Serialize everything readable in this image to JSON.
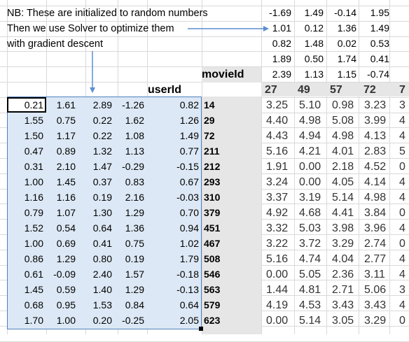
{
  "notes": {
    "line1": "NB: These are initialized to random numbers",
    "line2": "Then we use Solver to optimize them",
    "line3": "with gradient descent"
  },
  "labels": {
    "userId": "userId",
    "movieId": "movieId"
  },
  "movie_factors": [
    [
      "-1.69",
      "1.49",
      "-0.14",
      "1.95"
    ],
    [
      "1.01",
      "0.12",
      "1.36",
      "1.49"
    ],
    [
      "0.82",
      "1.48",
      "0.02",
      "0.53"
    ],
    [
      "1.89",
      "0.50",
      "1.74",
      "0.41"
    ],
    [
      "2.39",
      "1.13",
      "1.15",
      "-0.74"
    ]
  ],
  "movie_ids": [
    "27",
    "49",
    "57",
    "72",
    "7"
  ],
  "user_factors": [
    [
      "0.21",
      "1.61",
      "2.89",
      "-1.26",
      "0.82"
    ],
    [
      "1.55",
      "0.75",
      "0.22",
      "1.62",
      "1.26"
    ],
    [
      "1.50",
      "1.17",
      "0.22",
      "1.08",
      "1.49"
    ],
    [
      "0.47",
      "0.89",
      "1.32",
      "1.13",
      "0.77"
    ],
    [
      "0.31",
      "2.10",
      "1.47",
      "-0.29",
      "-0.15"
    ],
    [
      "1.00",
      "1.45",
      "0.37",
      "0.83",
      "0.67"
    ],
    [
      "1.16",
      "1.16",
      "0.19",
      "2.16",
      "-0.03"
    ],
    [
      "0.79",
      "1.07",
      "1.30",
      "1.29",
      "0.70"
    ],
    [
      "1.52",
      "0.54",
      "0.64",
      "1.36",
      "0.94"
    ],
    [
      "1.00",
      "0.69",
      "0.41",
      "0.75",
      "1.02"
    ],
    [
      "0.86",
      "1.29",
      "0.80",
      "0.19",
      "1.79"
    ],
    [
      "0.61",
      "-0.09",
      "2.40",
      "1.57",
      "-0.18"
    ],
    [
      "1.45",
      "0.59",
      "1.40",
      "1.29",
      "-0.13"
    ],
    [
      "0.68",
      "0.95",
      "1.53",
      "0.84",
      "0.64"
    ],
    [
      "1.70",
      "1.00",
      "0.20",
      "-0.25",
      "2.05"
    ]
  ],
  "user_ids": [
    "14",
    "29",
    "72",
    "211",
    "212",
    "293",
    "310",
    "379",
    "451",
    "467",
    "508",
    "546",
    "563",
    "579",
    "623"
  ],
  "predictions": [
    [
      "3.25",
      "5.10",
      "0.98",
      "3.23",
      "3"
    ],
    [
      "4.40",
      "4.98",
      "5.08",
      "3.99",
      "4"
    ],
    [
      "4.43",
      "4.94",
      "4.98",
      "4.13",
      "4"
    ],
    [
      "5.16",
      "4.21",
      "4.01",
      "2.83",
      "5"
    ],
    [
      "1.91",
      "0.00",
      "2.18",
      "4.52",
      "0"
    ],
    [
      "3.24",
      "0.00",
      "4.05",
      "4.14",
      "4"
    ],
    [
      "3.37",
      "3.19",
      "5.14",
      "4.98",
      "4"
    ],
    [
      "4.92",
      "4.68",
      "4.41",
      "3.84",
      "0"
    ],
    [
      "3.32",
      "5.03",
      "3.98",
      "3.96",
      "4"
    ],
    [
      "3.22",
      "3.72",
      "3.29",
      "2.74",
      "0"
    ],
    [
      "5.16",
      "4.74",
      "4.04",
      "2.77",
      "4"
    ],
    [
      "0.00",
      "5.05",
      "2.36",
      "3.11",
      "4"
    ],
    [
      "1.44",
      "4.81",
      "2.71",
      "5.06",
      "3"
    ],
    [
      "4.19",
      "4.53",
      "3.43",
      "3.43",
      "4"
    ],
    [
      "0.00",
      "5.14",
      "3.05",
      "3.29",
      "0"
    ]
  ],
  "colors": {
    "selection_fill": "#dce8f5",
    "selection_border": "#4f81bd",
    "arrow": "#5b8fd0",
    "header_gray": "#e6e6e6"
  }
}
